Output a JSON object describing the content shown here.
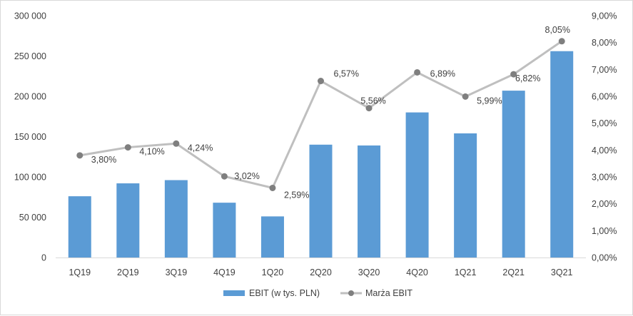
{
  "chart_data": {
    "type": "bar+line",
    "categories": [
      "1Q19",
      "2Q19",
      "3Q19",
      "4Q19",
      "1Q20",
      "2Q20",
      "3Q20",
      "4Q20",
      "1Q21",
      "2Q21",
      "3Q21"
    ],
    "series": [
      {
        "name": "EBIT (w tys. PLN)",
        "type": "bar",
        "axis": "left",
        "color": "#5b9bd5",
        "values": [
          76000,
          92000,
          96000,
          68000,
          51000,
          140000,
          139000,
          180000,
          154000,
          207000,
          256000
        ]
      },
      {
        "name": "Marża EBIT",
        "type": "line",
        "axis": "right",
        "color": "#bfbfbf",
        "marker_color": "#7f7f7f",
        "values": [
          3.8,
          4.1,
          4.24,
          3.02,
          2.59,
          6.57,
          5.56,
          6.89,
          5.99,
          6.82,
          8.05
        ],
        "labels": [
          "3,80%",
          "4,10%",
          "4,24%",
          "3,02%",
          "2,59%",
          "6,57%",
          "5,56%",
          "6,89%",
          "5,99%",
          "6,82%",
          "8,05%"
        ]
      }
    ],
    "y_left": {
      "ylim": [
        0,
        300000
      ],
      "ticks": [
        0,
        50000,
        100000,
        150000,
        200000,
        250000,
        300000
      ],
      "tick_labels": [
        "0",
        "50 000",
        "100 000",
        "150 000",
        "200 000",
        "250 000",
        "300 000"
      ]
    },
    "y_right": {
      "ylim": [
        0,
        9
      ],
      "ticks": [
        0,
        1,
        2,
        3,
        4,
        5,
        6,
        7,
        8,
        9
      ],
      "tick_labels": [
        "0,00%",
        "1,00%",
        "2,00%",
        "3,00%",
        "4,00%",
        "5,00%",
        "6,00%",
        "7,00%",
        "8,00%",
        "9,00%"
      ]
    },
    "grid": false,
    "legend": {
      "position": "bottom",
      "entries": [
        "EBIT (w tys. PLN)",
        "Marża EBIT"
      ]
    }
  }
}
